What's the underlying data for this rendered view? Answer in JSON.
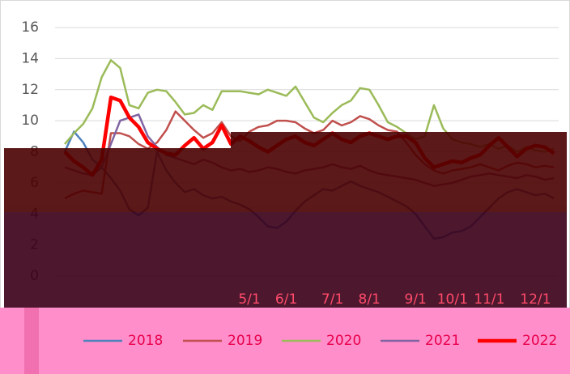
{
  "chart_data": {
    "type": "line",
    "categories": [
      null,
      null,
      null,
      null,
      null,
      null,
      null,
      null,
      null,
      null,
      null,
      null,
      null,
      null,
      null,
      null,
      null,
      null,
      null,
      null,
      "5/1",
      null,
      null,
      null,
      "6/1",
      null,
      null,
      null,
      null,
      "7/1",
      null,
      null,
      null,
      "8/1",
      null,
      null,
      null,
      null,
      "9/1",
      null,
      null,
      null,
      "10/1",
      null,
      null,
      null,
      "11/1",
      null,
      null,
      null,
      null,
      "12/1",
      null,
      null
    ],
    "ylim": [
      0,
      16
    ],
    "yticks": [
      0,
      2,
      4,
      6,
      8,
      10,
      12,
      14,
      16
    ],
    "grid": true,
    "legend": "bottom",
    "series": [
      {
        "name": "2018",
        "color": "#4f81bd",
        "width": 2.5,
        "values": [
          8.0,
          9.3,
          8.6,
          7.5,
          7.0,
          6.3,
          5.5,
          4.3,
          3.9,
          4.4,
          8.0,
          6.8,
          6.0,
          5.4,
          5.6,
          5.2,
          5.0,
          5.1,
          4.8,
          4.6,
          4.3,
          3.8,
          3.2,
          3.1,
          3.5,
          4.2,
          4.8,
          5.2,
          5.6,
          5.5,
          5.8,
          6.1,
          5.8,
          5.6,
          5.4,
          5.1,
          4.8,
          4.5,
          4.0,
          3.2,
          2.4,
          2.5,
          2.8,
          2.9,
          3.2,
          3.8,
          4.4,
          5.0,
          5.4,
          5.6,
          5.4,
          5.2,
          5.3,
          5.0
        ]
      },
      {
        "name": "2019",
        "color": "#c0504d",
        "width": 2.5,
        "values": [
          5.0,
          5.3,
          5.5,
          5.4,
          5.3,
          9.2,
          9.2,
          9.0,
          8.5,
          8.2,
          8.6,
          9.4,
          10.6,
          10.0,
          9.4,
          8.9,
          9.2,
          9.9,
          9.0,
          8.7,
          9.3,
          9.6,
          9.7,
          10.0,
          10.0,
          9.9,
          9.5,
          9.2,
          9.4,
          10.0,
          9.7,
          9.9,
          10.3,
          10.1,
          9.7,
          9.4,
          9.3,
          8.6,
          7.8,
          7.2,
          6.8,
          6.6,
          6.8,
          6.9,
          7.0,
          7.2,
          7.0,
          6.8,
          7.1,
          7.3,
          7.2,
          7.0,
          7.1,
          7.0
        ]
      },
      {
        "name": "2020",
        "color": "#9bbb59",
        "width": 2.5,
        "values": [
          8.5,
          9.2,
          9.8,
          10.8,
          12.8,
          13.9,
          13.4,
          11.0,
          10.8,
          11.8,
          12.0,
          11.9,
          11.2,
          10.4,
          10.5,
          11.0,
          10.7,
          11.9,
          11.9,
          11.9,
          11.8,
          11.7,
          12.0,
          11.8,
          11.6,
          12.2,
          11.2,
          10.2,
          9.9,
          10.5,
          11.0,
          11.3,
          12.1,
          12.0,
          11.0,
          9.9,
          9.6,
          9.2,
          8.8,
          9.0,
          11.0,
          9.5,
          8.8,
          8.6,
          8.5,
          8.3,
          8.5,
          8.2,
          8.4,
          8.0,
          8.3,
          8.1,
          8.0,
          8.2
        ]
      },
      {
        "name": "2021",
        "color": "#8064a2",
        "width": 2.5,
        "values": [
          7.0,
          6.8,
          6.6,
          6.5,
          7.0,
          8.5,
          10.0,
          10.2,
          10.4,
          9.0,
          8.3,
          7.8,
          7.6,
          7.4,
          7.2,
          7.5,
          7.3,
          7.0,
          6.8,
          6.9,
          6.7,
          6.8,
          7.0,
          6.9,
          6.7,
          6.6,
          6.8,
          6.9,
          7.0,
          7.2,
          7.0,
          6.9,
          7.1,
          6.8,
          6.6,
          6.5,
          6.4,
          6.3,
          6.2,
          6.0,
          5.8,
          5.9,
          6.0,
          6.2,
          6.4,
          6.5,
          6.6,
          6.5,
          6.4,
          6.3,
          6.5,
          6.4,
          6.2,
          6.3
        ]
      },
      {
        "name": "2022",
        "color": "#ff0000",
        "width": 4.5,
        "values": [
          8.0,
          7.4,
          7.0,
          6.5,
          7.5,
          11.5,
          11.3,
          10.2,
          9.6,
          8.6,
          8.2,
          7.9,
          7.8,
          8.4,
          8.9,
          8.2,
          8.6,
          9.7,
          8.5,
          9.0,
          8.7,
          8.3,
          8.0,
          8.4,
          8.8,
          9.0,
          8.6,
          8.4,
          8.8,
          9.2,
          8.8,
          8.6,
          9.0,
          9.2,
          9.0,
          8.8,
          9.0,
          9.0,
          8.6,
          7.6,
          7.0,
          7.2,
          7.4,
          7.3,
          7.6,
          7.8,
          8.4,
          8.9,
          8.3,
          7.7,
          8.2,
          8.4,
          8.3,
          7.9
        ]
      }
    ]
  }
}
